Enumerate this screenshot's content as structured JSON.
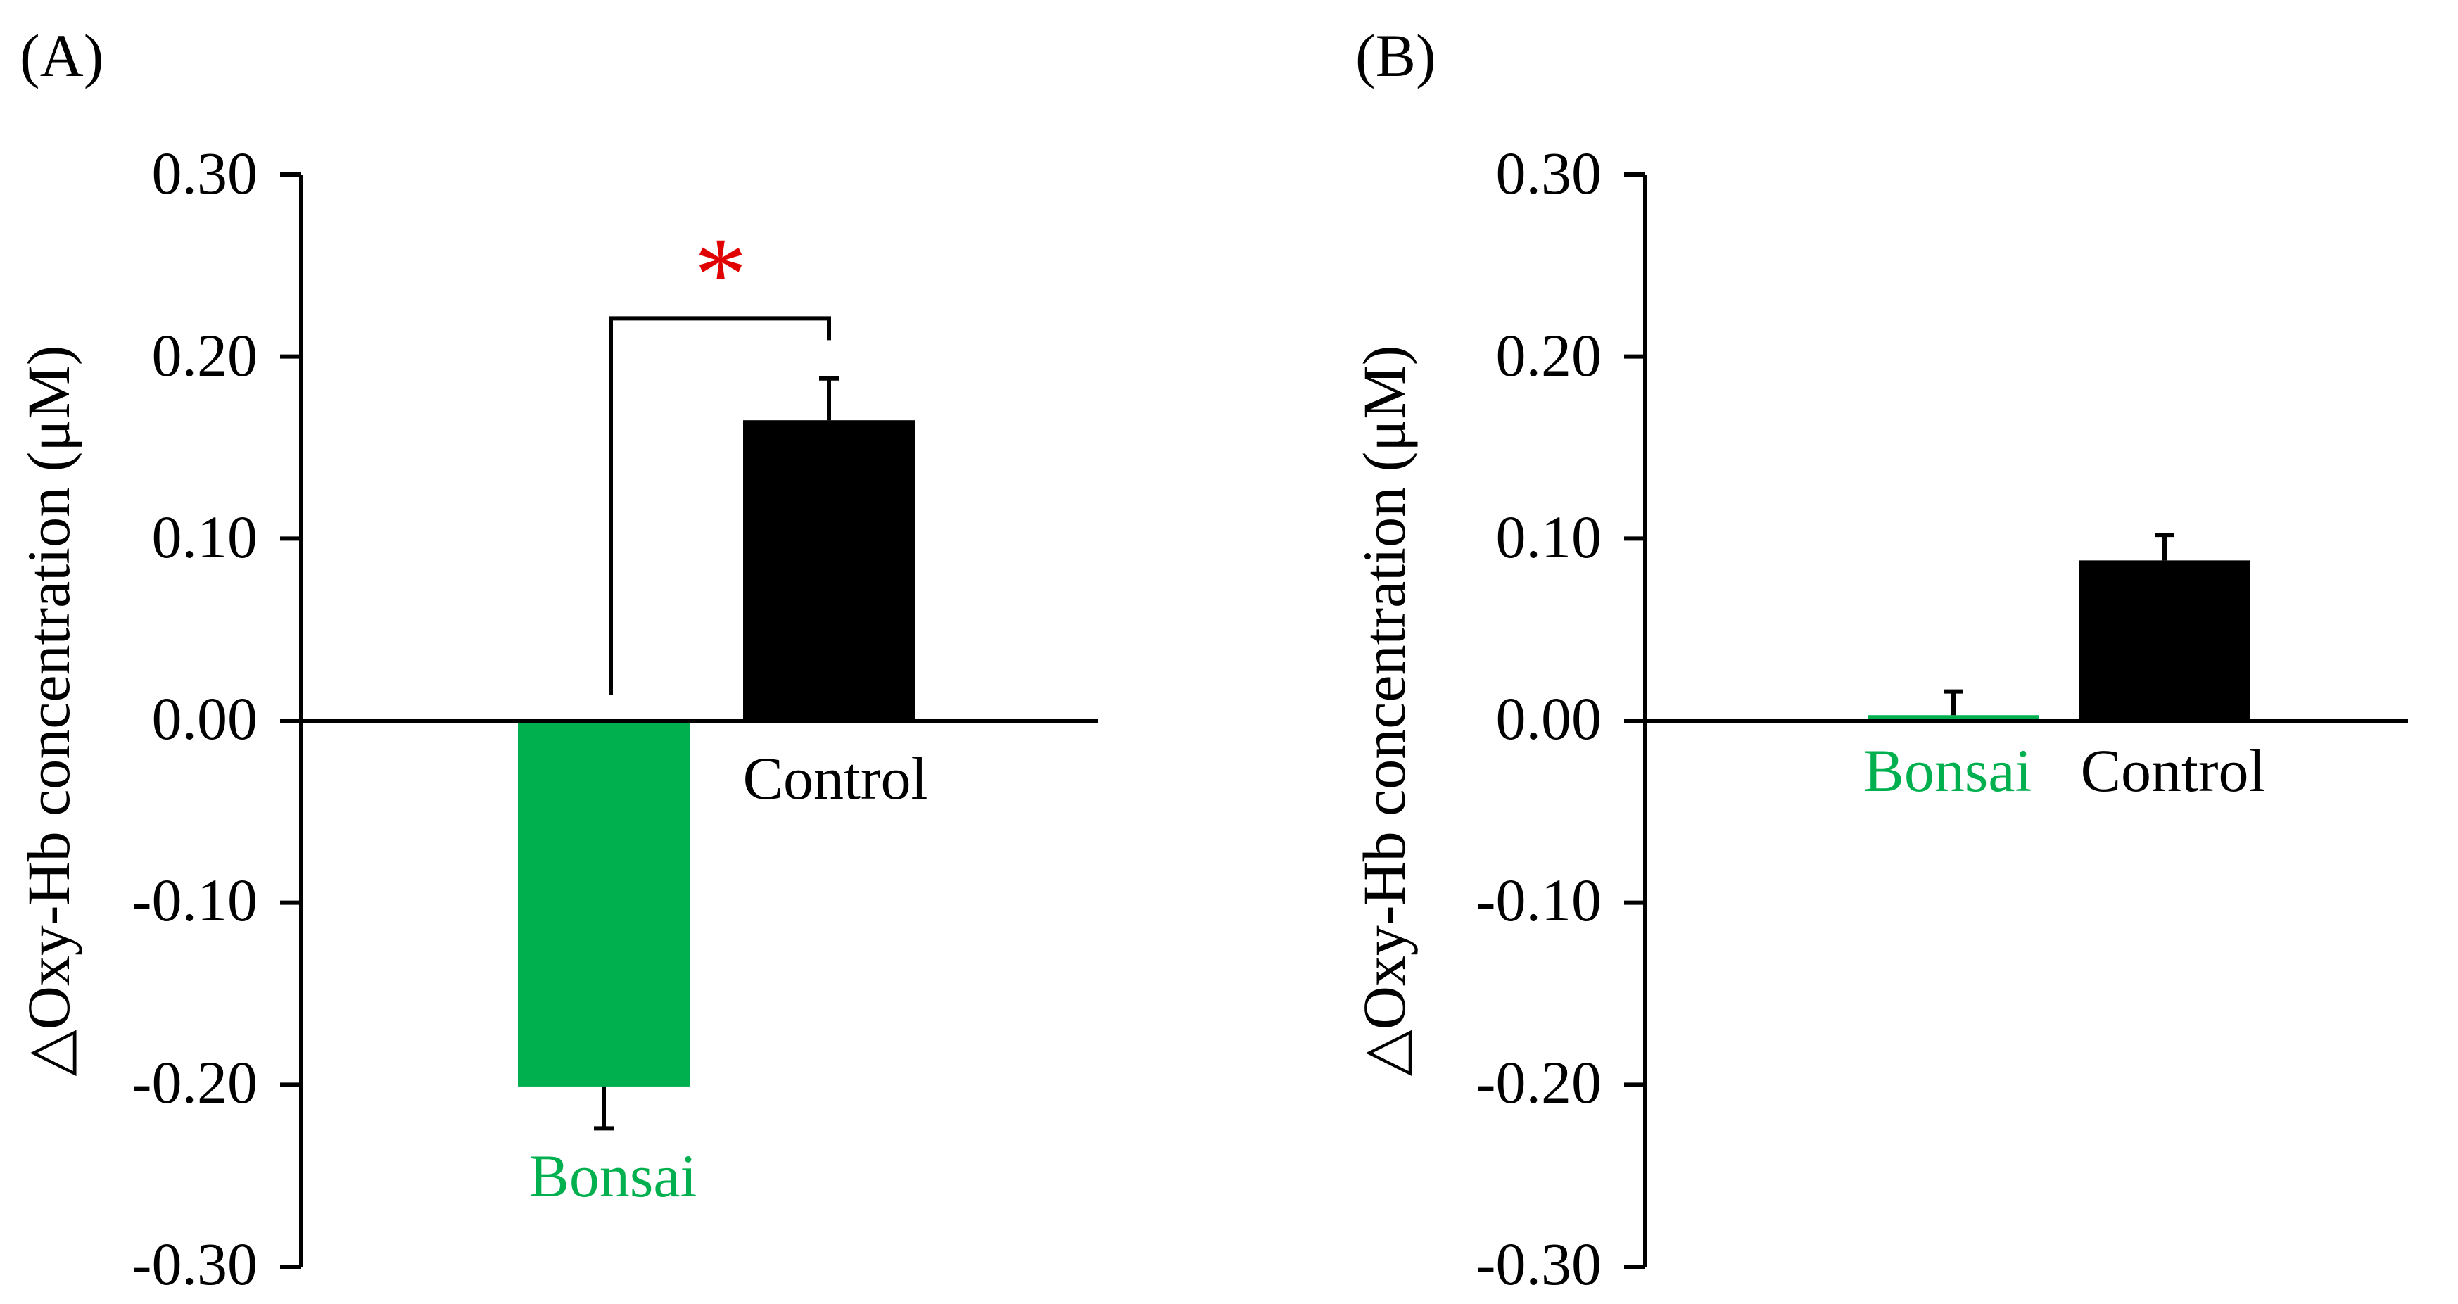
{
  "figure": {
    "colors": {
      "axis": "#000000",
      "bonsai": "#00b04f",
      "control": "#000000",
      "significance": "#e00000"
    }
  },
  "chart_data": [
    {
      "panel_label": "(A)",
      "type": "bar",
      "title": "",
      "xlabel": "",
      "ylabel": "△Oxy-Hb concentration (μM)",
      "ylim": [
        -0.3,
        0.3
      ],
      "yticks": [
        "0.30",
        "0.20",
        "0.10",
        "0.00",
        "-0.10",
        "-0.20",
        "-0.30"
      ],
      "ytick_values": [
        0.3,
        0.2,
        0.1,
        0.0,
        -0.1,
        -0.2,
        -0.3
      ],
      "grid": false,
      "categories": [
        "Bonsai",
        "Control"
      ],
      "values": [
        -0.201,
        0.165
      ],
      "errors": [
        0.023,
        0.023
      ],
      "bar_colors": [
        "#00b04f",
        "#000000"
      ],
      "label_colors": [
        "#00b04f",
        "#000000"
      ],
      "significance": {
        "marker": "*",
        "between": [
          "Bonsai",
          "Control"
        ],
        "bracket_top": 0.221,
        "left_end": 0.014,
        "right_end": 0.209
      }
    },
    {
      "panel_label": "(B)",
      "type": "bar",
      "title": "",
      "xlabel": "",
      "ylabel": "△Oxy-Hb concentration (μM)",
      "ylim": [
        -0.3,
        0.3
      ],
      "yticks": [
        "0.30",
        "0.20",
        "0.10",
        "0.00",
        "-0.10",
        "-0.20",
        "-0.30"
      ],
      "ytick_values": [
        0.3,
        0.2,
        0.1,
        0.0,
        -0.1,
        -0.2,
        -0.3
      ],
      "grid": false,
      "categories": [
        "Bonsai",
        "Control"
      ],
      "values": [
        0.003,
        0.088
      ],
      "errors": [
        0.013,
        0.014
      ],
      "bar_colors": [
        "#00b04f",
        "#000000"
      ],
      "label_colors": [
        "#00b04f",
        "#000000"
      ]
    }
  ]
}
